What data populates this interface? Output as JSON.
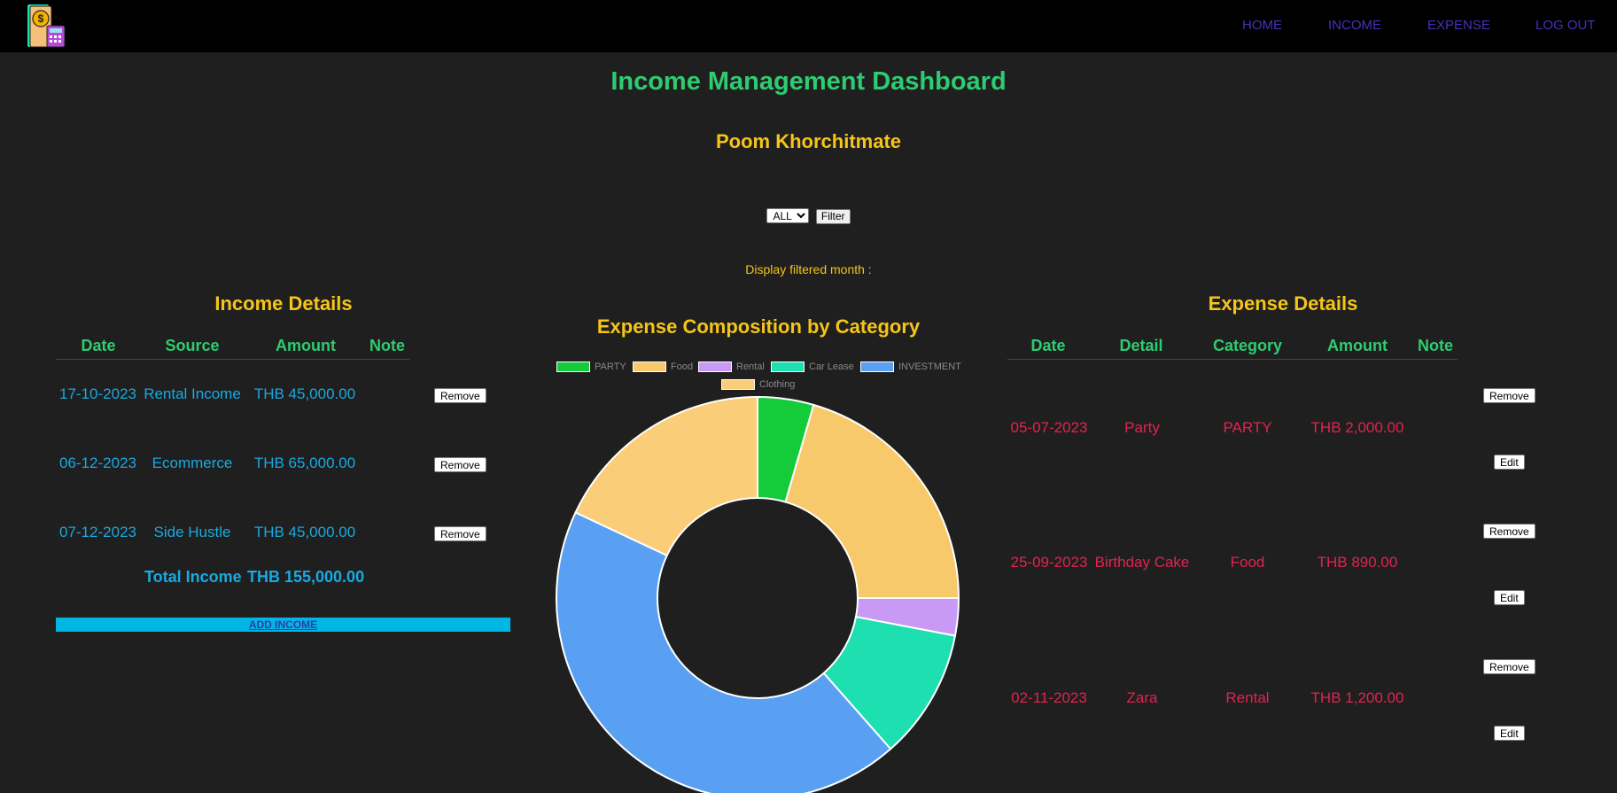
{
  "nav": {
    "home": "HOME",
    "income": "INCOME",
    "expense": "EXPENSE",
    "logout": "LOG OUT"
  },
  "page": {
    "title": "Income Management Dashboard",
    "username": "Poom Khorchitmate"
  },
  "filter": {
    "selected": "ALL",
    "button_label": "Filter",
    "display_label": "Display filtered month :"
  },
  "income": {
    "title": "Income Details",
    "headers": [
      "Date",
      "Source",
      "Amount",
      "Note"
    ],
    "rows": [
      {
        "date": "17-10-2023",
        "source": "Rental Income",
        "amount": "THB 45,000.00",
        "remove": "Remove"
      },
      {
        "date": "06-12-2023",
        "source": "Ecommerce",
        "amount": "THB 65,000.00",
        "remove": "Remove"
      },
      {
        "date": "07-12-2023",
        "source": "Side Hustle",
        "amount": "THB 45,000.00",
        "remove": "Remove"
      }
    ],
    "total_label": "Total Income",
    "total_value": "THB 155,000.00",
    "add_label": "ADD INCOME"
  },
  "expense": {
    "title": "Expense Details",
    "headers": [
      "Date",
      "Detail",
      "Category",
      "Amount",
      "Note"
    ],
    "rows": [
      {
        "date": "05-07-2023",
        "detail": "Party",
        "category": "PARTY",
        "amount": "THB 2,000.00",
        "remove": "Remove",
        "edit": "Edit"
      },
      {
        "date": "25-09-2023",
        "detail": "Birthday Cake",
        "category": "Food",
        "amount": "THB 890.00",
        "remove": "Remove",
        "edit": "Edit"
      },
      {
        "date": "02-11-2023",
        "detail": "Zara",
        "category": "Rental",
        "amount": "THB 1,200.00",
        "remove": "Remove",
        "edit": "Edit"
      }
    ]
  },
  "chart_data": {
    "type": "pie",
    "title": "Expense Composition by Category",
    "legend_position": "top",
    "slices": [
      {
        "label": "PARTY",
        "value": 4.5,
        "color": "#14cc3a"
      },
      {
        "label": "Food",
        "value": 20.5,
        "color": "#f7c96b"
      },
      {
        "label": "Rental",
        "value": 3.0,
        "color": "#c99af5"
      },
      {
        "label": "Car Lease",
        "value": 10.5,
        "color": "#1ddfb0"
      },
      {
        "label": "INVESTMENT",
        "value": 43.5,
        "color": "#5aa0f2"
      },
      {
        "label": "Clothing",
        "value": 18.0,
        "color": "#facd79"
      }
    ]
  }
}
